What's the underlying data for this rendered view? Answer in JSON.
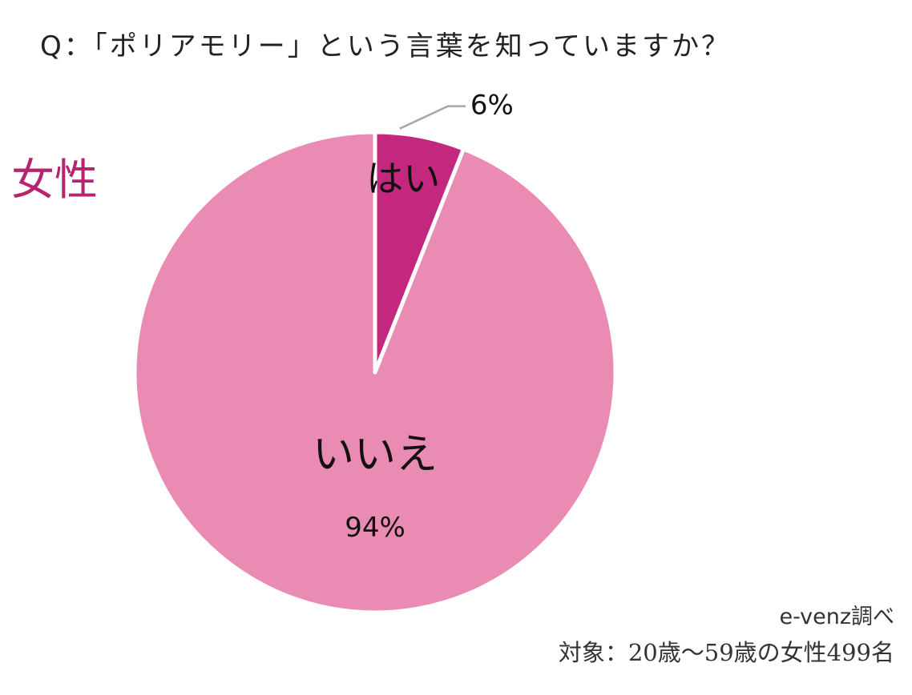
{
  "question": "Q：「ポリアモリー」という言葉を知っていますか？",
  "gender_label": "女性",
  "chart_data": {
    "type": "pie",
    "title": "",
    "slices": [
      {
        "label": "はい",
        "value": 6,
        "value_label": "6%",
        "color": "#c4277e"
      },
      {
        "label": "いいえ",
        "value": 94,
        "value_label": "94%",
        "color": "#ea8bb4"
      }
    ],
    "start_angle_deg": 0,
    "direction": "clockwise",
    "legend": "none"
  },
  "footer": {
    "source": "e-venz調べ",
    "target": "対象：20歳～59歳の女性499名"
  }
}
